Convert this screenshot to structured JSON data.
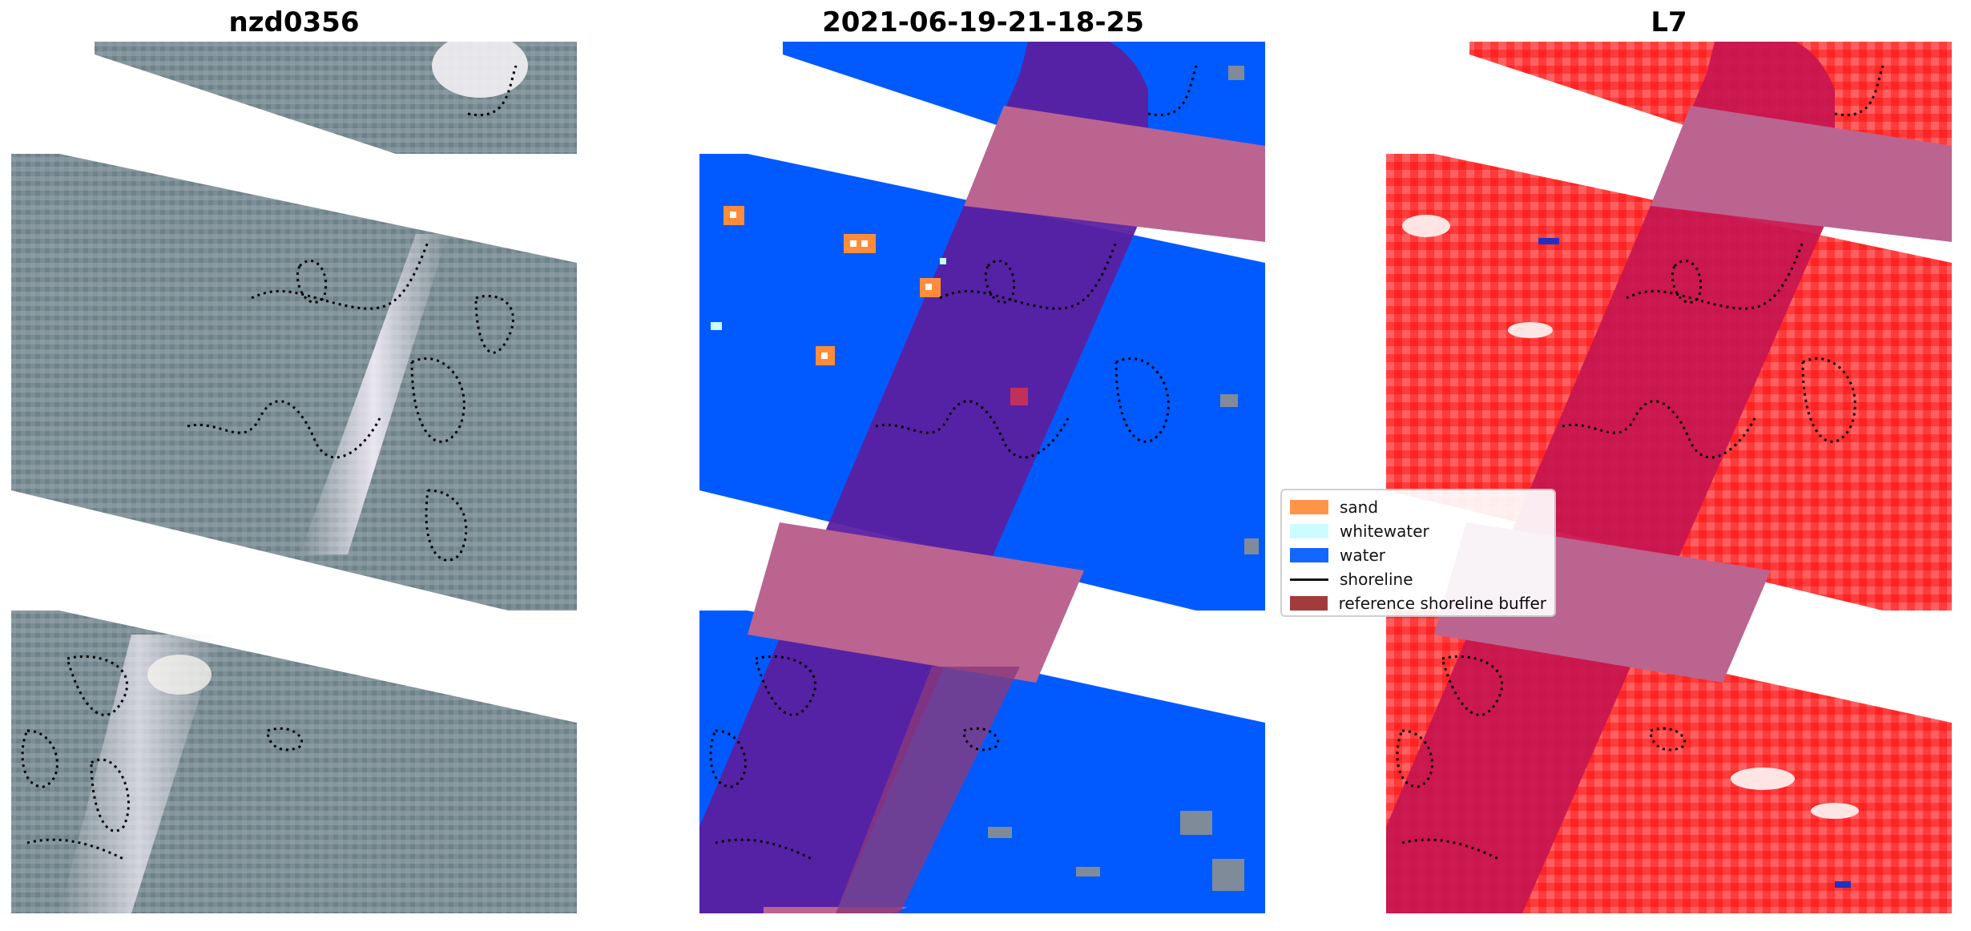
{
  "panels": [
    {
      "title": "nzd0356",
      "kind": "rgb-image"
    },
    {
      "title": "2021-06-19-21-18-25",
      "kind": "classification"
    },
    {
      "title": "L7",
      "kind": "mndwi-image"
    }
  ],
  "legend": {
    "items": [
      {
        "label": "sand",
        "color": "#ff8c3a",
        "type": "patch"
      },
      {
        "label": "whitewater",
        "color": "#c8fcff",
        "type": "patch"
      },
      {
        "label": "water",
        "color": "#005aff",
        "type": "patch"
      },
      {
        "label": "shoreline",
        "color": "#000000",
        "type": "line"
      },
      {
        "label": "reference shoreline buffer",
        "color": "#9b2b2b",
        "type": "patch"
      }
    ]
  },
  "colors": {
    "rgb_land": "#7b8d95",
    "rgb_glint": "#e6e2ea",
    "water": "#005aff",
    "buffer_overlay": "#8a1e9a",
    "pink_band": "#bb6490",
    "mndwi_red": "#ff3b3b",
    "mndwi_dark": "#c8164f"
  }
}
